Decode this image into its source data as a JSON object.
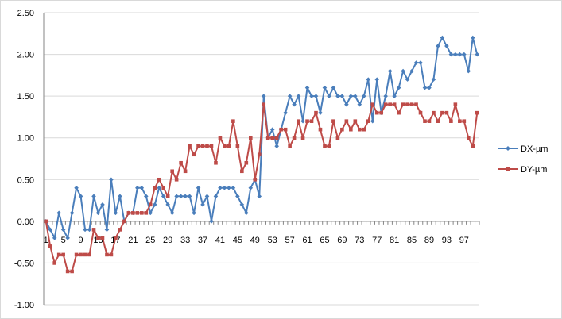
{
  "chart_data": {
    "type": "line",
    "title": "",
    "xlabel": "",
    "ylabel": "",
    "ylim": [
      -1.0,
      2.5
    ],
    "y_ticks": [
      "2.50",
      "2.00",
      "1.50",
      "1.00",
      "0.50",
      "0.00",
      "-0.50",
      "-1.00"
    ],
    "y_tick_values": [
      2.5,
      2.0,
      1.5,
      1.0,
      0.5,
      0.0,
      -0.5,
      -1.0
    ],
    "x_tick_labels": [
      "1",
      "5",
      "9",
      "13",
      "17",
      "21",
      "25",
      "29",
      "33",
      "37",
      "41",
      "45",
      "49",
      "53",
      "57",
      "61",
      "65",
      "69",
      "73",
      "77",
      "81",
      "85",
      "89",
      "93",
      "97"
    ],
    "x": [
      1,
      2,
      3,
      4,
      5,
      6,
      7,
      8,
      9,
      10,
      11,
      12,
      13,
      14,
      15,
      16,
      17,
      18,
      19,
      20,
      21,
      22,
      23,
      24,
      25,
      26,
      27,
      28,
      29,
      30,
      31,
      32,
      33,
      34,
      35,
      36,
      37,
      38,
      39,
      40,
      41,
      42,
      43,
      44,
      45,
      46,
      47,
      48,
      49,
      50,
      51,
      52,
      53,
      54,
      55,
      56,
      57,
      58,
      59,
      60,
      61,
      62,
      63,
      64,
      65,
      66,
      67,
      68,
      69,
      70,
      71,
      72,
      73,
      74,
      75,
      76,
      77,
      78,
      79,
      80,
      81,
      82,
      83,
      84,
      85,
      86,
      87,
      88,
      89,
      90,
      91,
      92,
      93,
      94,
      95,
      96,
      97,
      98,
      99,
      100
    ],
    "grid": "horizontal",
    "legend_position": "right",
    "series": [
      {
        "name": "DX-µm",
        "color": "#4a7ebb",
        "marker": "diamond",
        "values": [
          0.0,
          -0.1,
          -0.2,
          0.1,
          -0.1,
          -0.2,
          0.1,
          0.4,
          0.3,
          -0.1,
          -0.1,
          0.3,
          0.1,
          0.2,
          -0.1,
          0.5,
          0.1,
          0.3,
          0.0,
          0.1,
          0.1,
          0.4,
          0.4,
          0.3,
          0.1,
          0.2,
          0.4,
          0.3,
          0.2,
          0.1,
          0.3,
          0.3,
          0.3,
          0.3,
          0.1,
          0.4,
          0.2,
          0.3,
          0.0,
          0.3,
          0.4,
          0.4,
          0.4,
          0.4,
          0.3,
          0.2,
          0.1,
          0.4,
          0.5,
          0.3,
          1.5,
          1.0,
          1.1,
          0.9,
          1.1,
          1.3,
          1.5,
          1.4,
          1.5,
          1.2,
          1.6,
          1.5,
          1.5,
          1.3,
          1.6,
          1.5,
          1.6,
          1.5,
          1.5,
          1.4,
          1.5,
          1.5,
          1.4,
          1.5,
          1.7,
          1.2,
          1.7,
          1.3,
          1.5,
          1.8,
          1.5,
          1.6,
          1.8,
          1.7,
          1.8,
          1.9,
          1.9,
          1.6,
          1.6,
          1.7,
          2.1,
          2.2,
          2.1,
          2.0,
          2.0,
          2.0,
          2.0,
          1.8,
          2.2,
          2.0
        ]
      },
      {
        "name": "DY-µm",
        "color": "#be4b48",
        "marker": "square",
        "values": [
          0.0,
          -0.3,
          -0.5,
          -0.4,
          -0.4,
          -0.6,
          -0.6,
          -0.4,
          -0.4,
          -0.4,
          -0.4,
          -0.1,
          -0.2,
          -0.2,
          -0.4,
          -0.4,
          -0.2,
          -0.1,
          0.0,
          0.1,
          0.1,
          0.1,
          0.1,
          0.1,
          0.2,
          0.4,
          0.5,
          0.4,
          0.3,
          0.6,
          0.5,
          0.7,
          0.6,
          0.9,
          0.8,
          0.9,
          0.9,
          0.9,
          0.9,
          0.7,
          1.0,
          0.9,
          0.9,
          1.2,
          0.9,
          0.6,
          0.7,
          1.0,
          0.5,
          0.8,
          1.4,
          1.0,
          1.0,
          1.0,
          1.1,
          1.1,
          0.9,
          1.0,
          1.2,
          1.0,
          1.2,
          1.2,
          1.3,
          1.1,
          0.9,
          0.9,
          1.2,
          1.0,
          1.1,
          1.2,
          1.1,
          1.2,
          1.1,
          1.1,
          1.2,
          1.4,
          1.3,
          1.3,
          1.4,
          1.4,
          1.4,
          1.3,
          1.4,
          1.4,
          1.4,
          1.4,
          1.3,
          1.2,
          1.2,
          1.3,
          1.2,
          1.3,
          1.3,
          1.2,
          1.4,
          1.2,
          1.2,
          1.0,
          0.9,
          1.3
        ]
      }
    ]
  }
}
